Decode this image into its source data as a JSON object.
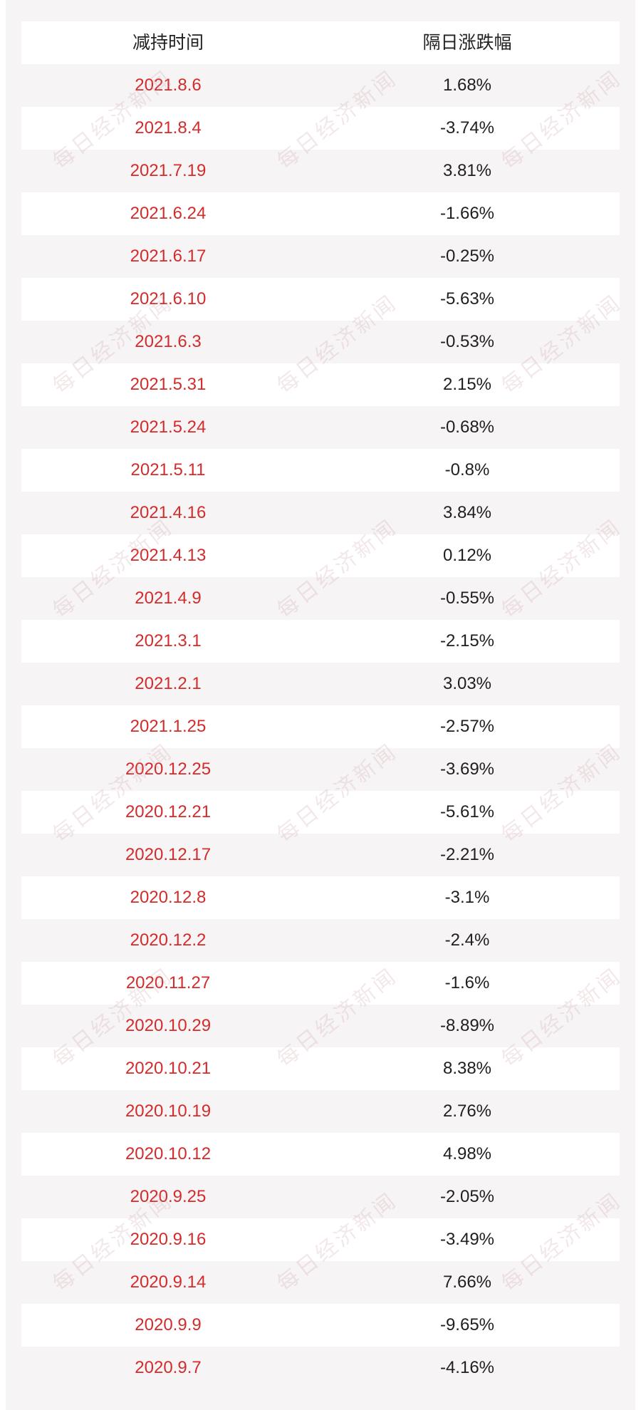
{
  "table": {
    "headers": {
      "date": "减持时间",
      "change": "隔日涨跌幅"
    },
    "rows": [
      {
        "date": "2021.8.6",
        "change": "1.68%"
      },
      {
        "date": "2021.8.4",
        "change": "-3.74%"
      },
      {
        "date": "2021.7.19",
        "change": "3.81%"
      },
      {
        "date": "2021.6.24",
        "change": "-1.66%"
      },
      {
        "date": "2021.6.17",
        "change": "-0.25%"
      },
      {
        "date": "2021.6.10",
        "change": "-5.63%"
      },
      {
        "date": "2021.6.3",
        "change": "-0.53%"
      },
      {
        "date": "2021.5.31",
        "change": "2.15%"
      },
      {
        "date": "2021.5.24",
        "change": "-0.68%"
      },
      {
        "date": "2021.5.11",
        "change": "-0.8%"
      },
      {
        "date": "2021.4.16",
        "change": "3.84%"
      },
      {
        "date": "2021.4.13",
        "change": "0.12%"
      },
      {
        "date": "2021.4.9",
        "change": "-0.55%"
      },
      {
        "date": "2021.3.1",
        "change": "-2.15%"
      },
      {
        "date": "2021.2.1",
        "change": "3.03%"
      },
      {
        "date": "2021.1.25",
        "change": "-2.57%"
      },
      {
        "date": "2020.12.25",
        "change": "-3.69%"
      },
      {
        "date": "2020.12.21",
        "change": "-5.61%"
      },
      {
        "date": "2020.12.17",
        "change": "-2.21%"
      },
      {
        "date": "2020.12.8",
        "change": "-3.1%"
      },
      {
        "date": "2020.12.2",
        "change": "-2.4%"
      },
      {
        "date": "2020.11.27",
        "change": "-1.6%"
      },
      {
        "date": "2020.10.29",
        "change": "-8.89%"
      },
      {
        "date": "2020.10.21",
        "change": "8.38%"
      },
      {
        "date": "2020.10.19",
        "change": "2.76%"
      },
      {
        "date": "2020.10.12",
        "change": "4.98%"
      },
      {
        "date": "2020.9.25",
        "change": "-2.05%"
      },
      {
        "date": "2020.9.16",
        "change": "-3.49%"
      },
      {
        "date": "2020.9.14",
        "change": "7.66%"
      },
      {
        "date": "2020.9.9",
        "change": "-9.65%"
      },
      {
        "date": "2020.9.7",
        "change": "-4.16%"
      }
    ]
  },
  "watermark_text": "每日经济新闻",
  "colors": {
    "date_text": "#d42b2b",
    "panel_bg": "#f7f4f5"
  }
}
